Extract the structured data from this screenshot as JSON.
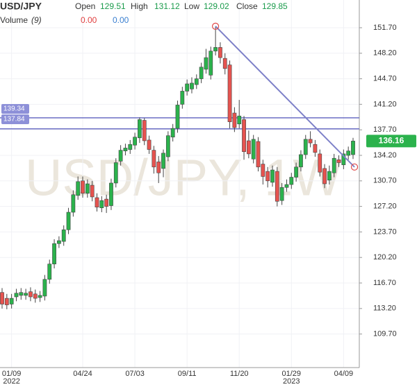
{
  "chart_data": {
    "type": "candlestick",
    "header": {
      "symbol": "USD/JPY",
      "open_label": "Open",
      "open": "129.51",
      "high_label": "High",
      "high": "131.12",
      "low_label": "Low",
      "low": "129.02",
      "close_label": "Close",
      "close": "129.85",
      "volume_label": "Volume",
      "volume_period": "(9)",
      "volume_1": "0.00",
      "volume_2": "0.00"
    },
    "watermark": "USD/JPY, 1W",
    "categories": [
      null,
      null,
      "01/09",
      null,
      null,
      null,
      null,
      null,
      null,
      null,
      null,
      null,
      null,
      null,
      null,
      null,
      null,
      "04/24",
      null,
      null,
      null,
      null,
      null,
      null,
      null,
      null,
      null,
      null,
      "07/03",
      null,
      null,
      null,
      null,
      null,
      null,
      null,
      null,
      null,
      null,
      "09/11",
      null,
      null,
      null,
      null,
      null,
      null,
      null,
      null,
      null,
      null,
      "11/20",
      null,
      null,
      null,
      null,
      null,
      null,
      null,
      null,
      null,
      null,
      "01/29",
      null,
      null,
      null,
      null,
      null,
      null,
      null,
      null,
      null,
      null,
      "04/09",
      null,
      null
    ],
    "year_labels": [
      null,
      null,
      "2022",
      null,
      null,
      null,
      null,
      null,
      null,
      null,
      null,
      null,
      null,
      null,
      null,
      null,
      null,
      null,
      null,
      null,
      null,
      null,
      null,
      null,
      null,
      null,
      null,
      null,
      null,
      null,
      null,
      null,
      null,
      null,
      null,
      null,
      null,
      null,
      null,
      null,
      null,
      null,
      null,
      null,
      null,
      null,
      null,
      null,
      null,
      null,
      null,
      null,
      null,
      null,
      null,
      null,
      null,
      null,
      null,
      null,
      null,
      "2023",
      null,
      null,
      null,
      null,
      null,
      null,
      null,
      null,
      null,
      null,
      null,
      null,
      null
    ],
    "open": [
      115.4,
      114.6,
      113.8,
      114.8,
      115.0,
      115.0,
      115.5,
      115.2,
      114.7,
      114.9,
      117.2,
      119.3,
      122.1,
      122.4,
      124.0,
      126.4,
      128.7,
      130.7,
      129.0,
      130.1,
      128.4,
      127.0,
      128.2,
      127.3,
      130.4,
      133.4,
      134.8,
      135.0,
      135.6,
      136.6,
      139.0,
      136.3,
      134.9,
      133.3,
      132.4,
      134.0,
      136.7,
      137.9,
      141.2,
      143.0,
      143.3,
      143.9,
      144.7,
      146.0,
      145.2,
      148.5,
      149.0,
      147.5,
      146.6,
      140.0,
      138.5,
      139.1,
      136.2,
      133.7,
      136.1,
      133.0,
      132.0,
      130.5,
      132.0,
      128.0,
      129.8,
      130.2,
      131.2,
      132.6,
      134.3,
      136.4,
      135.7,
      134.4,
      132.4,
      130.8,
      131.8,
      133.6,
      132.9,
      134.2,
      134.3
    ],
    "high": [
      116.0,
      115.2,
      115.2,
      115.9,
      116.0,
      115.9,
      116.1,
      115.8,
      115.6,
      117.8,
      119.9,
      122.7,
      123.1,
      124.6,
      127.0,
      129.4,
      131.3,
      131.3,
      130.9,
      130.7,
      129.0,
      128.6,
      128.8,
      131.0,
      133.8,
      135.6,
      135.8,
      136.3,
      137.3,
      139.4,
      139.3,
      136.9,
      135.5,
      134.1,
      135.0,
      137.5,
      138.5,
      141.7,
      143.6,
      144.6,
      144.9,
      145.3,
      146.9,
      148.8,
      149.1,
      151.9,
      149.7,
      148.2,
      147.2,
      140.8,
      141.8,
      139.6,
      137.6,
      137.0,
      136.7,
      133.6,
      132.6,
      132.8,
      132.6,
      130.4,
      130.9,
      131.8,
      133.2,
      134.9,
      137.0,
      137.5,
      136.3,
      135.0,
      133.0,
      132.8,
      134.4,
      134.2,
      135.0,
      135.4,
      136.6
    ],
    "low": [
      113.2,
      113.1,
      113.2,
      114.2,
      114.4,
      114.4,
      114.2,
      114.0,
      114.1,
      114.3,
      116.6,
      118.7,
      121.5,
      121.8,
      123.4,
      125.8,
      128.1,
      128.4,
      128.4,
      127.9,
      126.5,
      126.4,
      126.3,
      126.7,
      129.8,
      132.8,
      134.2,
      134.4,
      135.0,
      135.9,
      135.6,
      134.4,
      131.7,
      130.4,
      131.2,
      133.4,
      136.1,
      137.3,
      140.6,
      142.4,
      142.7,
      143.3,
      144.1,
      145.4,
      144.6,
      147.9,
      146.8,
      145.3,
      137.9,
      137.4,
      137.9,
      133.6,
      133.8,
      133.1,
      132.0,
      130.2,
      129.8,
      129.9,
      127.2,
      127.4,
      129.2,
      129.6,
      130.6,
      132.0,
      133.7,
      135.3,
      134.0,
      131.3,
      129.7,
      130.2,
      131.2,
      132.6,
      132.3,
      133.6,
      133.7
    ],
    "close": [
      113.8,
      113.7,
      114.6,
      115.3,
      115.4,
      115.3,
      114.8,
      114.6,
      115.0,
      117.2,
      119.3,
      122.1,
      122.5,
      124.0,
      126.4,
      128.8,
      130.6,
      129.0,
      130.3,
      128.5,
      127.1,
      128.0,
      127.2,
      130.4,
      133.2,
      134.9,
      135.2,
      135.7,
      136.7,
      139.1,
      136.2,
      135.0,
      132.6,
      131.8,
      134.5,
      136.9,
      137.9,
      141.1,
      143.0,
      144.0,
      144.1,
      144.7,
      146.3,
      147.6,
      148.5,
      149.0,
      147.6,
      146.1,
      138.8,
      138.0,
      139.6,
      134.7,
      134.4,
      136.4,
      132.6,
      131.3,
      130.7,
      132.2,
      127.9,
      129.8,
      130.2,
      131.2,
      132.6,
      134.3,
      136.4,
      135.9,
      134.6,
      131.9,
      130.3,
      132.0,
      133.8,
      133.2,
      134.4,
      134.8,
      136.16
    ],
    "up_color": "#2bb24c",
    "down_color": "#e6534f",
    "ylim": [
      105.1,
      155.5
    ],
    "yticks": [
      {
        "value": 109.7,
        "label": "109.70"
      },
      {
        "value": 113.2,
        "label": "113.20"
      },
      {
        "value": 116.7,
        "label": "116.70"
      },
      {
        "value": 120.2,
        "label": "120.20"
      },
      {
        "value": 123.7,
        "label": "123.70"
      },
      {
        "value": 127.2,
        "label": "127.20"
      },
      {
        "value": 130.7,
        "label": "130.70"
      },
      {
        "value": 134.2,
        "label": "134.20"
      },
      {
        "value": 137.7,
        "label": "137.70"
      },
      {
        "value": 141.2,
        "label": "141.20"
      },
      {
        "value": 144.7,
        "label": "144.70"
      },
      {
        "value": 148.2,
        "label": "148.20"
      },
      {
        "value": 151.7,
        "label": "151.70"
      }
    ],
    "grid": true,
    "horizontal_lines": [
      {
        "value": 139.34,
        "label": "139.34"
      },
      {
        "value": 137.84,
        "label": "137.84"
      }
    ],
    "line_color": "#6b6ec4",
    "trend_line": {
      "x": [
        45,
        74.3
      ],
      "y": [
        151.9,
        132.6
      ],
      "color": "#7d80c8"
    }
  }
}
